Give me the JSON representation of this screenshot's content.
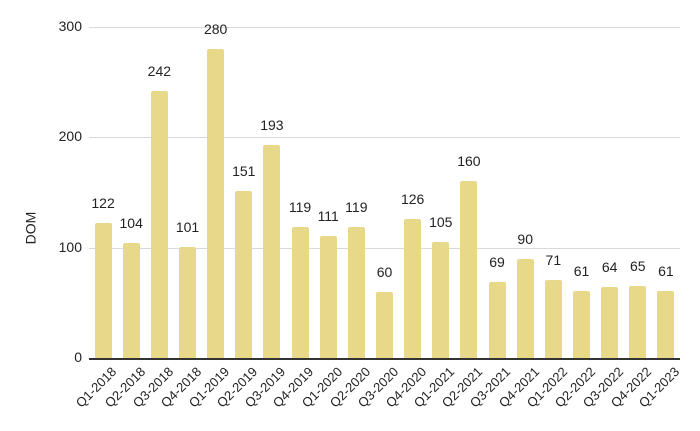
{
  "chart_data": {
    "type": "bar",
    "title": "",
    "xlabel": "",
    "ylabel": "DOM",
    "ylim": [
      0,
      300
    ],
    "yticks": [
      0,
      100,
      200,
      300
    ],
    "grid": true,
    "legend": "none",
    "bar_color": "#e8d88a",
    "categories": [
      "Q1-2018",
      "Q2-2018",
      "Q3-2018",
      "Q4-2018",
      "Q1-2019",
      "Q2-2019",
      "Q3-2019",
      "Q4-2019",
      "Q1-2020",
      "Q2-2020",
      "Q3-2020",
      "Q4-2020",
      "Q1-2021",
      "Q2-2021",
      "Q3-2021",
      "Q4-2021",
      "Q1-2022",
      "Q2-2022",
      "Q3-2022",
      "Q4-2022",
      "Q1-2023"
    ],
    "values": [
      122,
      104,
      242,
      101,
      280,
      151,
      193,
      119,
      111,
      119,
      60,
      126,
      105,
      160,
      69,
      90,
      71,
      61,
      64,
      65,
      61
    ]
  }
}
